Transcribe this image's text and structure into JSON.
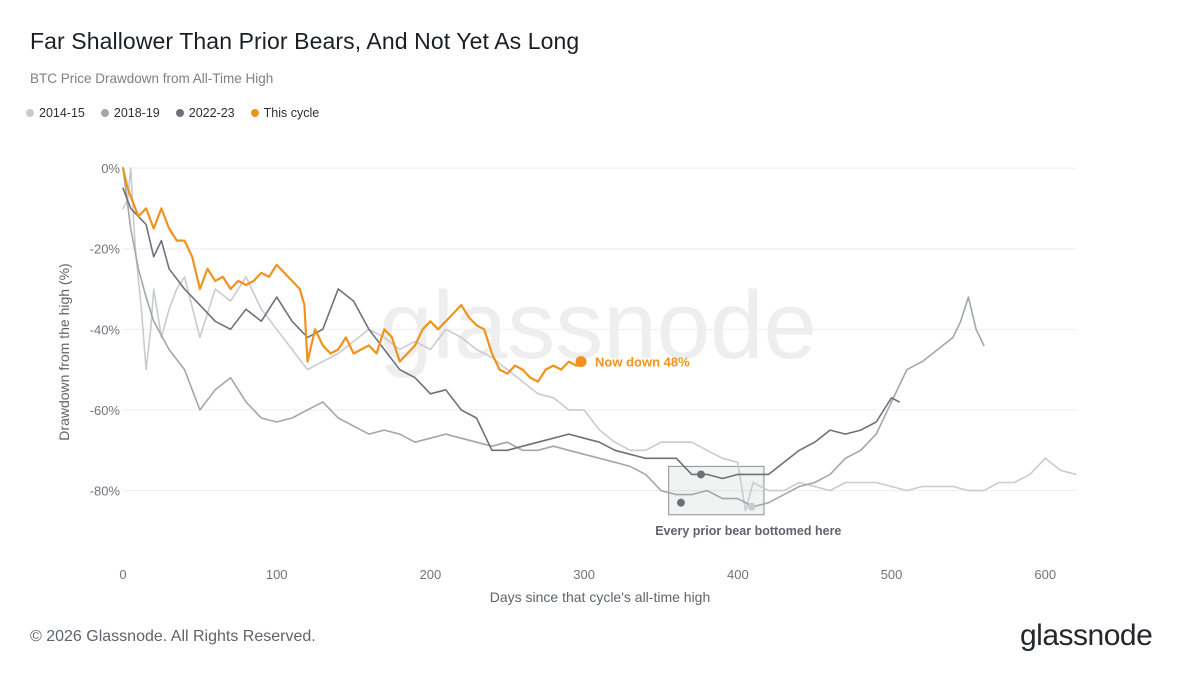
{
  "header": {
    "title": "Far Shallower Than Prior Bears, And Not Yet As Long",
    "subtitle": "BTC Price Drawdown from All-Time High"
  },
  "legend": [
    {
      "label": "2014-15",
      "color": "#c9cbcf"
    },
    {
      "label": "2018-19",
      "color": "#a3a6ac"
    },
    {
      "label": "2022-23",
      "color": "#6d717a"
    },
    {
      "label": "This cycle",
      "color": "#f0931e"
    }
  ],
  "footer": {
    "copyright": "© 2026 Glassnode. All Rights Reserved.",
    "brand": "glassnode",
    "watermark": "glassnode"
  },
  "chart_data": {
    "type": "line",
    "xlabel": "Days since that cycle's all-time high",
    "ylabel": "Drawdown from the high (%)",
    "xlim": [
      0,
      620
    ],
    "ylim": [
      -94,
      2
    ],
    "x_ticks": [
      0,
      100,
      200,
      300,
      400,
      500,
      600
    ],
    "y_ticks": [
      0,
      -20,
      -40,
      -60,
      -80
    ],
    "y_tick_labels": [
      "0%",
      "-20%",
      "-40%",
      "-60%",
      "-80%"
    ],
    "grid": true,
    "series": [
      {
        "name": "2014-15",
        "color": "#c9cbcf",
        "x": [
          0,
          3,
          5,
          8,
          12,
          15,
          18,
          20,
          25,
          30,
          35,
          40,
          50,
          60,
          70,
          80,
          90,
          100,
          110,
          120,
          130,
          140,
          150,
          160,
          170,
          180,
          190,
          200,
          210,
          220,
          230,
          240,
          250,
          260,
          270,
          280,
          290,
          300,
          310,
          320,
          330,
          340,
          350,
          360,
          370,
          380,
          390,
          400,
          405,
          410,
          420,
          430,
          440,
          450,
          460,
          470,
          480,
          490,
          500,
          510,
          520,
          530,
          540,
          550,
          560,
          570,
          580,
          590,
          600,
          610,
          620
        ],
        "y": [
          -10,
          -8,
          0,
          -20,
          -35,
          -50,
          -40,
          -30,
          -42,
          -35,
          -30,
          -27,
          -42,
          -30,
          -33,
          -27,
          -35,
          -40,
          -45,
          -50,
          -48,
          -46,
          -43,
          -40,
          -42,
          -45,
          -43,
          -45,
          -40,
          -42,
          -45,
          -47,
          -50,
          -53,
          -56,
          -57,
          -60,
          -60,
          -65,
          -68,
          -70,
          -70,
          -68,
          -68,
          -68,
          -70,
          -72,
          -73,
          -85,
          -78,
          -80,
          -80,
          -78,
          -79,
          -80,
          -78,
          -78,
          -78,
          -79,
          -80,
          -79,
          -79,
          -79,
          -80,
          -80,
          -78,
          -78,
          -76,
          -72,
          -75,
          -76
        ]
      },
      {
        "name": "2018-19",
        "color": "#a3a6ac",
        "x": [
          0,
          5,
          10,
          15,
          20,
          30,
          40,
          50,
          60,
          70,
          80,
          90,
          100,
          110,
          120,
          130,
          140,
          150,
          160,
          170,
          180,
          190,
          200,
          210,
          220,
          230,
          240,
          250,
          260,
          270,
          280,
          290,
          300,
          310,
          320,
          330,
          340,
          350,
          360,
          370,
          380,
          390,
          400,
          410,
          420,
          430,
          440,
          450,
          460,
          470,
          480,
          490,
          500,
          510,
          520,
          530,
          540,
          545,
          550,
          555,
          560
        ],
        "y": [
          0,
          -15,
          -25,
          -32,
          -38,
          -45,
          -50,
          -60,
          -55,
          -52,
          -58,
          -62,
          -63,
          -62,
          -60,
          -58,
          -62,
          -64,
          -66,
          -65,
          -66,
          -68,
          -67,
          -66,
          -67,
          -68,
          -69,
          -68,
          -70,
          -70,
          -69,
          -70,
          -71,
          -72,
          -73,
          -74,
          -76,
          -80,
          -81,
          -81,
          -80,
          -82,
          -82,
          -84,
          -83,
          -81,
          -79,
          -78,
          -76,
          -72,
          -70,
          -66,
          -58,
          -50,
          -48,
          -45,
          -42,
          -38,
          -32,
          -40,
          -44
        ]
      },
      {
        "name": "2022-23",
        "color": "#6d717a",
        "x": [
          0,
          5,
          10,
          15,
          20,
          25,
          30,
          40,
          50,
          60,
          70,
          80,
          90,
          100,
          110,
          120,
          130,
          140,
          150,
          160,
          170,
          180,
          190,
          200,
          210,
          220,
          230,
          240,
          250,
          260,
          270,
          280,
          290,
          300,
          310,
          320,
          330,
          340,
          350,
          360,
          370,
          380,
          390,
          400,
          410,
          420,
          430,
          440,
          450,
          460,
          470,
          480,
          490,
          500,
          505
        ],
        "y": [
          -5,
          -10,
          -12,
          -14,
          -22,
          -18,
          -25,
          -30,
          -34,
          -38,
          -40,
          -35,
          -38,
          -32,
          -38,
          -42,
          -40,
          -30,
          -33,
          -40,
          -45,
          -50,
          -52,
          -56,
          -55,
          -60,
          -62,
          -70,
          -70,
          -69,
          -68,
          -67,
          -66,
          -67,
          -68,
          -70,
          -71,
          -72,
          -72,
          -72,
          -76,
          -76,
          -77,
          -76,
          -76,
          -76,
          -73,
          -70,
          -68,
          -65,
          -66,
          -65,
          -63,
          -57,
          -58
        ]
      },
      {
        "name": "This cycle",
        "color": "#f0931e",
        "x": [
          0,
          3,
          6,
          10,
          15,
          20,
          25,
          30,
          35,
          40,
          45,
          50,
          55,
          60,
          65,
          70,
          75,
          80,
          85,
          90,
          95,
          100,
          105,
          110,
          115,
          118,
          120,
          125,
          130,
          135,
          140,
          145,
          150,
          155,
          160,
          165,
          170,
          175,
          180,
          185,
          190,
          195,
          200,
          205,
          210,
          215,
          220,
          225,
          230,
          235,
          240,
          245,
          250,
          255,
          260,
          265,
          270,
          275,
          280,
          285,
          290,
          295,
          298
        ],
        "y": [
          0,
          -5,
          -8,
          -12,
          -10,
          -15,
          -10,
          -15,
          -18,
          -18,
          -22,
          -30,
          -25,
          -28,
          -27,
          -30,
          -28,
          -29,
          -28,
          -26,
          -27,
          -24,
          -26,
          -28,
          -30,
          -34,
          -48,
          -40,
          -44,
          -46,
          -45,
          -42,
          -46,
          -45,
          -44,
          -46,
          -40,
          -42,
          -48,
          -46,
          -44,
          -40,
          -38,
          -40,
          -38,
          -36,
          -34,
          -37,
          -39,
          -40,
          -46,
          -50,
          -51,
          -49,
          -50,
          -52,
          -53,
          -50,
          -49,
          -50,
          -48,
          -49,
          -48
        ]
      }
    ],
    "annotations": [
      {
        "text": "Now down 48%",
        "x": 298,
        "y": -48
      },
      {
        "text": "Every prior bear bottomed here",
        "x_range": [
          355,
          417
        ],
        "y_range": [
          -74,
          -86
        ]
      }
    ],
    "bottom_markers": [
      {
        "x": 363,
        "y": -83,
        "color": "#6d717a"
      },
      {
        "x": 376,
        "y": -76,
        "color": "#6d717a"
      },
      {
        "x": 409,
        "y": -84,
        "color": "#c9cbcf"
      }
    ]
  }
}
